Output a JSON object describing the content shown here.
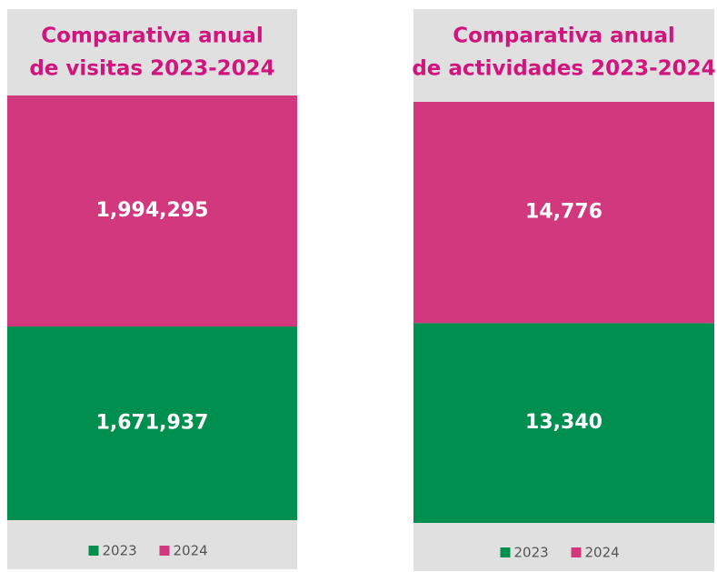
{
  "chart_data": [
    {
      "type": "bar",
      "stacked": true,
      "title": [
        "Comparativa anual",
        "de visitas 2023-2024"
      ],
      "categories": [
        null
      ],
      "series": [
        {
          "name": "2023",
          "color": "#008f4f",
          "values": [
            1671937
          ],
          "value_labels": [
            "1,671,937"
          ]
        },
        {
          "name": "2024",
          "color": "#d2387e",
          "values": [
            1994295
          ],
          "value_labels": [
            "1,994,295"
          ]
        }
      ],
      "legend": "bottom"
    },
    {
      "type": "bar",
      "stacked": true,
      "title": [
        "Comparativa anual",
        "de actividades 2023-2024"
      ],
      "categories": [
        null
      ],
      "series": [
        {
          "name": "2023",
          "color": "#008f4f",
          "values": [
            13340
          ],
          "value_labels": [
            "13,340"
          ]
        },
        {
          "name": "2024",
          "color": "#d2387e",
          "values": [
            14776
          ],
          "value_labels": [
            "14,776"
          ]
        }
      ],
      "legend": "bottom"
    }
  ]
}
